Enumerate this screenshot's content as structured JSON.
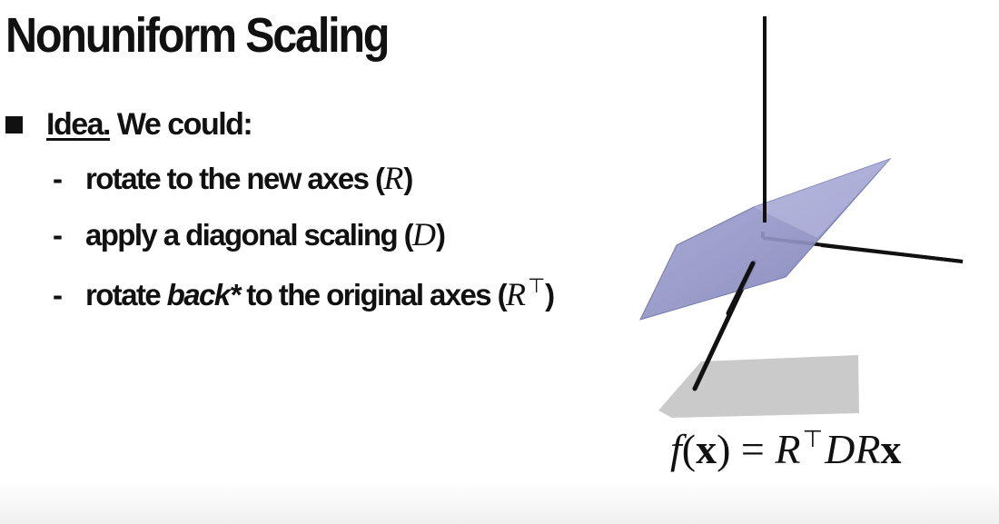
{
  "slide": {
    "title": "Nonuniform Scaling",
    "bullet": {
      "label": "Idea.",
      "text": " We could:"
    },
    "items": [
      {
        "text": "rotate to the new axes (",
        "math": "R",
        "sup": "",
        "close": ")"
      },
      {
        "text": "apply a diagonal scaling (",
        "math": "D",
        "sup": "",
        "close": ")"
      },
      {
        "text_before": "rotate ",
        "emph": "back*",
        "text_after": " to the original axes (",
        "math": "R",
        "sup": "⊤",
        "close": ")"
      }
    ],
    "formula": {
      "f": "f",
      "open": "(",
      "x": "x",
      "close_eq": ") = ",
      "R": "R",
      "T": "⊤",
      "DR": "DR",
      "x2": "x"
    }
  },
  "colors": {
    "text": "#111111",
    "plane": "#8f91c3",
    "shadow": "#c9c9c9",
    "axis": "#111111"
  }
}
